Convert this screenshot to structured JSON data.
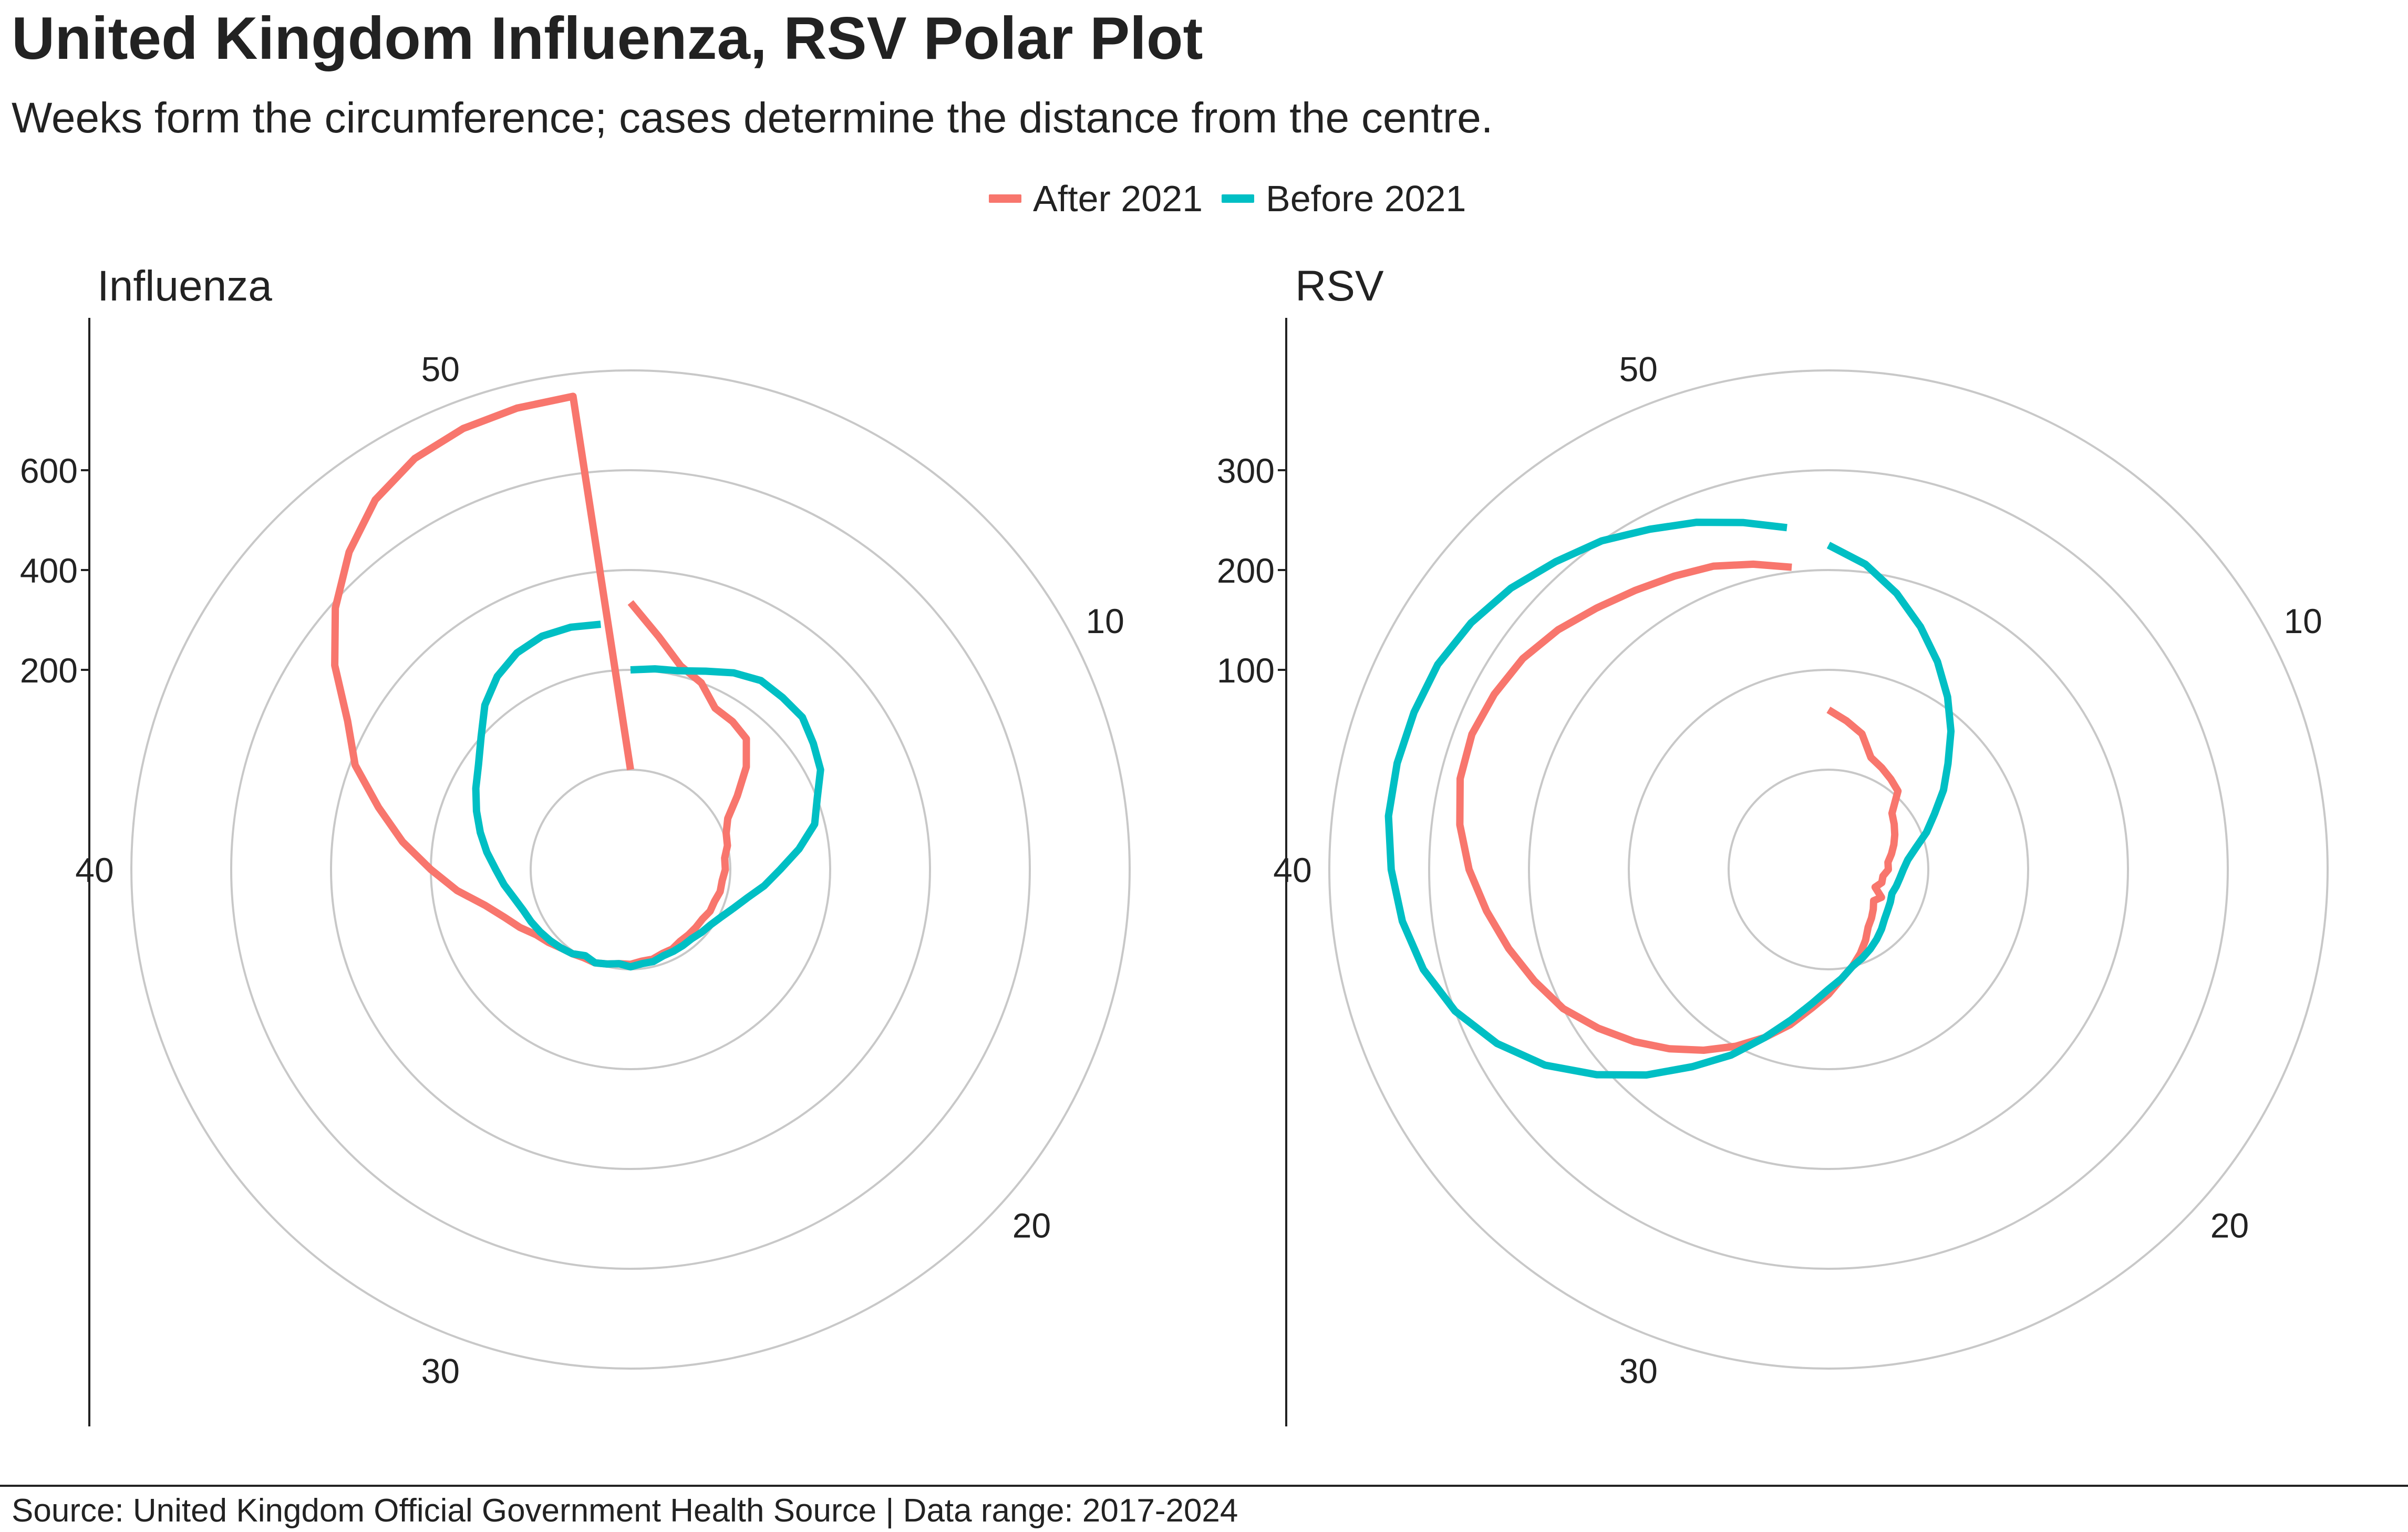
{
  "title": "United Kingdom Influenza, RSV Polar Plot",
  "subtitle": "Weeks form the circumference; cases determine the distance from the centre.",
  "legend": [
    {
      "label": "After 2021",
      "color": "#F8766D"
    },
    {
      "label": "Before 2021",
      "color": "#00BFC4"
    }
  ],
  "source": "Source: United Kingdom Official Government Health Source | Data range: 2017-2024",
  "colors": {
    "grid": "#c8c8c8",
    "axis": "#222222"
  },
  "chart_data": [
    {
      "type": "line",
      "coordinate_system": "polar",
      "title": "Influenza",
      "theta_variable": "week",
      "theta_range": [
        1,
        53
      ],
      "radial_range": [
        -200,
        800
      ],
      "radial_ticks": [
        200,
        400,
        600
      ],
      "angular_tick_labels": [
        "10",
        "20",
        "30",
        "40",
        "50"
      ],
      "angular_tick_values": [
        10,
        20,
        30,
        40,
        50
      ],
      "series": [
        {
          "name": "After 2021",
          "x": [
            1,
            2,
            3,
            4,
            5,
            6,
            7,
            8,
            9,
            10,
            11,
            12,
            13,
            14,
            15,
            16,
            17,
            18,
            19,
            20,
            21,
            22,
            23,
            24,
            25,
            26,
            27,
            28,
            29,
            30,
            31,
            32,
            33,
            34,
            35,
            36,
            37,
            38,
            39,
            40,
            41,
            42,
            43,
            44,
            45,
            46,
            47,
            48,
            49,
            50,
            51,
            52,
            53
          ],
          "y": [
            335,
            270,
            220,
            200,
            165,
            160,
            150,
            110,
            60,
            20,
            5,
            0,
            -10,
            -10,
            -15,
            -15,
            -20,
            -20,
            -25,
            -25,
            -25,
            -25,
            -20,
            -20,
            -15,
            -15,
            -10,
            -10,
            -5,
            0,
            0,
            5,
            10,
            20,
            30,
            50,
            70,
            100,
            150,
            200,
            260,
            320,
            390,
            440,
            520,
            590,
            650,
            700,
            730,
            745,
            752,
            755,
            0
          ]
        },
        {
          "name": "Before 2021",
          "x": [
            1,
            2,
            3,
            4,
            5,
            6,
            7,
            8,
            9,
            10,
            11,
            12,
            13,
            14,
            15,
            16,
            17,
            18,
            19,
            20,
            21,
            22,
            23,
            24,
            25,
            26,
            27,
            28,
            29,
            30,
            31,
            32,
            33,
            34,
            35,
            36,
            37,
            38,
            39,
            40,
            41,
            42,
            43,
            44,
            45,
            46,
            47,
            48,
            49,
            50,
            51,
            52
          ],
          "y": [
            200,
            205,
            210,
            225,
            245,
            260,
            260,
            260,
            245,
            230,
            200,
            180,
            140,
            100,
            70,
            40,
            20,
            5,
            -5,
            -10,
            -15,
            -15,
            -15,
            -15,
            -10,
            -10,
            -5,
            -10,
            -5,
            0,
            -5,
            5,
            10,
            15,
            20,
            25,
            30,
            40,
            55,
            70,
            90,
            110,
            130,
            150,
            170,
            200,
            240,
            270,
            290,
            300,
            300,
            295
          ]
        }
      ]
    },
    {
      "type": "line",
      "coordinate_system": "polar",
      "title": "RSV",
      "theta_variable": "week",
      "theta_range": [
        1,
        53
      ],
      "radial_range": [
        -100,
        400
      ],
      "radial_ticks": [
        100,
        200,
        300
      ],
      "angular_tick_labels": [
        "10",
        "20",
        "30",
        "40",
        "50"
      ],
      "angular_tick_values": [
        10,
        20,
        30,
        40,
        50
      ],
      "series": [
        {
          "name": "After 2021",
          "x": [
            1,
            2,
            3,
            4,
            5,
            6,
            7,
            8,
            9,
            10,
            11,
            12,
            13,
            14,
            15,
            16,
            17,
            18,
            19,
            20,
            21,
            22,
            23,
            24,
            25,
            26,
            27,
            28,
            29,
            30,
            31,
            32,
            33,
            34,
            35,
            36,
            37,
            38,
            39,
            40,
            41,
            42,
            43,
            44,
            45,
            46,
            47,
            48,
            49,
            50,
            51,
            52
          ],
          "y": [
            60,
            50,
            40,
            20,
            15,
            10,
            5,
            -15,
            -20,
            -25,
            -30,
            -35,
            -40,
            -40,
            -45,
            -45,
            -50,
            -40,
            -45,
            -40,
            -35,
            -30,
            -20,
            -10,
            0,
            10,
            25,
            40,
            60,
            80,
            100,
            120,
            140,
            160,
            180,
            200,
            215,
            230,
            245,
            260,
            272,
            280,
            282,
            278,
            272,
            262,
            250,
            240,
            232,
            225,
            215,
            205
          ]
        },
        {
          "name": "Before 2021",
          "x": [
            1,
            2,
            3,
            4,
            5,
            6,
            7,
            8,
            9,
            10,
            11,
            12,
            13,
            14,
            15,
            16,
            17,
            18,
            19,
            20,
            21,
            22,
            23,
            24,
            25,
            26,
            27,
            28,
            29,
            30,
            31,
            32,
            33,
            34,
            35,
            36,
            37,
            38,
            39,
            40,
            41,
            42,
            43,
            44,
            45,
            46,
            47,
            48,
            49,
            50,
            51,
            52
          ],
          "y": [
            225,
            208,
            185,
            160,
            135,
            110,
            85,
            60,
            40,
            20,
            5,
            -10,
            -20,
            -25,
            -28,
            -30,
            -32,
            -30,
            -28,
            -25,
            -20,
            -15,
            -10,
            -5,
            0,
            10,
            20,
            35,
            55,
            80,
            110,
            140,
            175,
            210,
            245,
            275,
            300,
            318,
            330,
            338,
            344,
            345,
            344,
            342,
            335,
            325,
            312,
            300,
            285,
            272,
            258,
            245
          ]
        }
      ]
    }
  ]
}
